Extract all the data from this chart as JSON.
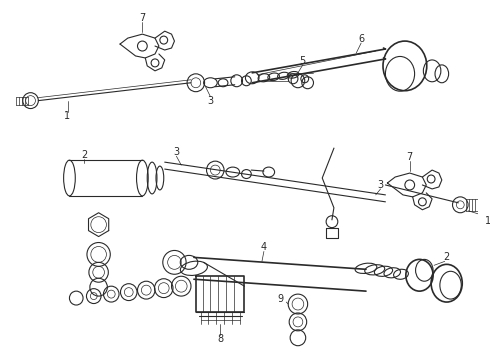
{
  "bg_color": "#ffffff",
  "line_color": "#2a2a2a",
  "fig_width": 4.9,
  "fig_height": 3.6,
  "dpi": 100
}
